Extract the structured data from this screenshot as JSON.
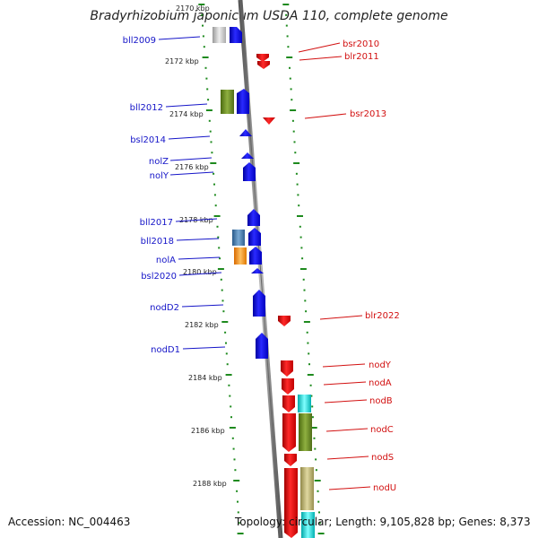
{
  "title": "Bradyrhizobium japonicum USDA 110, complete genome",
  "footer": {
    "accession": "Accession: NC_004463",
    "summary": "Topology: circular; Length: 9,105,828 bp; Genes: 8,373"
  },
  "tick_labels": [
    {
      "text": "2170 kbp"
    },
    {
      "text": "2172 kbp"
    },
    {
      "text": "2174 kbp"
    },
    {
      "text": "2176 kbp"
    },
    {
      "text": "2178 kbp"
    },
    {
      "text": "2180 kbp"
    },
    {
      "text": "2182 kbp"
    },
    {
      "text": "2184 kbp"
    },
    {
      "text": "2186 kbp"
    },
    {
      "text": "2188 kbp"
    }
  ],
  "genes_left": [
    {
      "name": "bll2009",
      "color": "#1010e0"
    },
    {
      "name": "bll2012",
      "color": "#1010e0"
    },
    {
      "name": "bsl2014",
      "color": "#1010e0"
    },
    {
      "name": "nolZ",
      "color": "#1010e0"
    },
    {
      "name": "nolY",
      "color": "#1010e0"
    },
    {
      "name": "bll2017",
      "color": "#1010e0"
    },
    {
      "name": "bll2018",
      "color": "#1010e0"
    },
    {
      "name": "nolA",
      "color": "#1010e0"
    },
    {
      "name": "bsl2020",
      "color": "#1010e0"
    },
    {
      "name": "nodD2",
      "color": "#1010e0"
    },
    {
      "name": "nodD1",
      "color": "#1010e0"
    }
  ],
  "genes_right": [
    {
      "name": "bsr2010",
      "color": "#e01010"
    },
    {
      "name": "blr2011",
      "color": "#e01010"
    },
    {
      "name": "bsr2013",
      "color": "#e01010"
    },
    {
      "name": "blr2022",
      "color": "#e01010"
    },
    {
      "name": "nodY",
      "color": "#e01010"
    },
    {
      "name": "nodA",
      "color": "#e01010"
    },
    {
      "name": "nodB",
      "color": "#e01010"
    },
    {
      "name": "nodC",
      "color": "#e01010"
    },
    {
      "name": "nodS",
      "color": "#e01010"
    },
    {
      "name": "nodU",
      "color": "#e01010"
    }
  ],
  "cog_colors": {
    "gray": "#c8c8c8",
    "olive": "#6b8e23",
    "steel": "#4682b4",
    "orange": "#ff9a1a",
    "cyan": "#20d8d8",
    "khaki": "#b8b070"
  }
}
